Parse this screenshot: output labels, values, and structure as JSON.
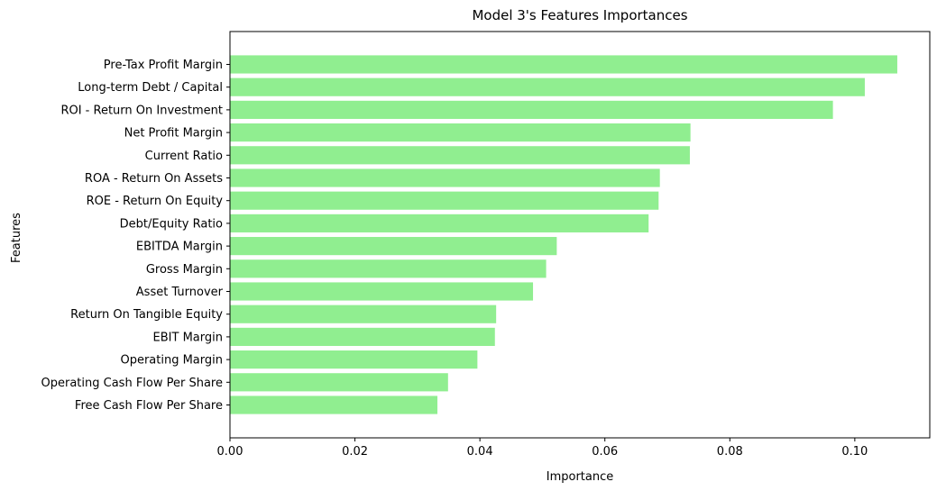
{
  "chart_data": {
    "type": "bar",
    "orientation": "horizontal",
    "title": "Model 3's Features Importances",
    "xlabel": "Importance",
    "ylabel": "Features",
    "xlim": [
      0,
      0.112
    ],
    "xticks": [
      0.0,
      0.02,
      0.04,
      0.06,
      0.08,
      0.1
    ],
    "xtick_labels": [
      "0.00",
      "0.02",
      "0.04",
      "0.06",
      "0.08",
      "0.10"
    ],
    "grid": false,
    "bar_color": "#90ee90",
    "categories": [
      "Pre-Tax Profit Margin",
      "Long-term Debt / Capital",
      "ROI - Return On Investment",
      "Net Profit Margin",
      "Current Ratio",
      "ROA - Return On Assets",
      "ROE - Return On Equity",
      "Debt/Equity Ratio",
      "EBITDA Margin",
      "Gross Margin",
      "Asset Turnover",
      "Return On Tangible Equity",
      "EBIT Margin",
      "Operating Margin",
      "Operating Cash Flow Per Share",
      "Free Cash Flow Per Share"
    ],
    "values": [
      0.1068,
      0.1016,
      0.0965,
      0.0737,
      0.0736,
      0.0688,
      0.0686,
      0.067,
      0.0523,
      0.0506,
      0.0485,
      0.0426,
      0.0424,
      0.0396,
      0.0349,
      0.0332
    ]
  }
}
